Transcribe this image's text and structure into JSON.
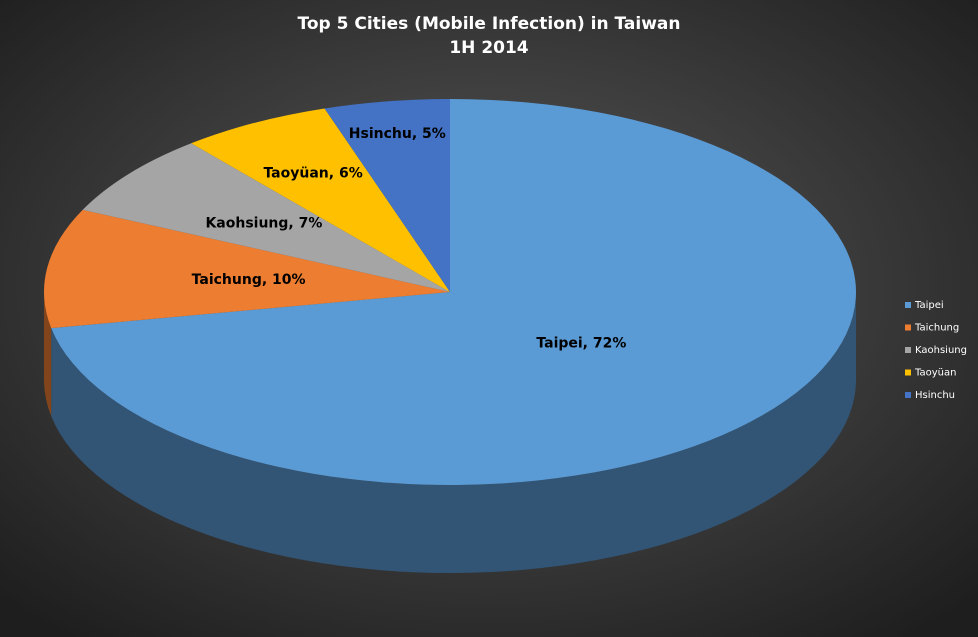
{
  "chart_data": {
    "type": "pie3d",
    "title": "Top 5 Cities (Mobile Infection) in Taiwan",
    "subtitle": "1H 2014",
    "categories": [
      "Taipei",
      "Taichung",
      "Kaohsiung",
      "Taoyüan",
      "Hsinchu"
    ],
    "values": [
      72,
      10,
      7,
      6,
      5
    ],
    "value_labels": [
      "Taipei, 72%",
      "Taichung, 10%",
      "Kaohsiung, 7%",
      "Taoyüan, 6%",
      "Hsinchu, 5%"
    ],
    "colors": [
      "#5b9bd5",
      "#ed7d31",
      "#a5a5a5",
      "#ffc000",
      "#4472c4"
    ],
    "legend": "right"
  }
}
